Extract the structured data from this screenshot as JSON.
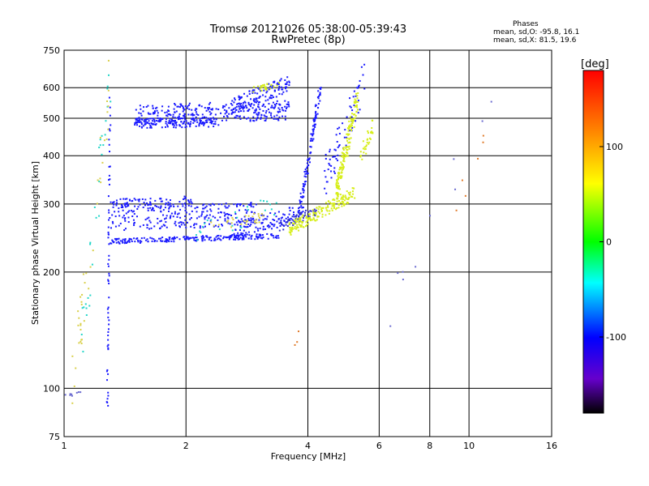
{
  "chart_data": {
    "type": "scatter",
    "title": "Tromsø 20121026 05:38:00-05:39:43",
    "subtitle": "RwPretec (8p)",
    "xlabel": "Frequency [MHz]",
    "ylabel": "Stationary phase Virtual Height [km]",
    "x_scale": "log",
    "y_scale": "log",
    "xlim": [
      1,
      16
    ],
    "ylim": [
      75,
      750
    ],
    "x_ticks": [
      1,
      2,
      4,
      6,
      8,
      10,
      16
    ],
    "y_ticks": [
      75,
      100,
      200,
      300,
      400,
      500,
      600,
      750
    ],
    "grid": true,
    "phase_stats": {
      "heading": "Phases",
      "line_o": "mean, sd,O: -95.8, 16.1",
      "line_x": "mean, sd,X:  81.5, 19.6"
    },
    "colorbar": {
      "unit": "[deg]",
      "range": [
        -180,
        180
      ],
      "ticks": [
        100,
        0,
        -100
      ],
      "colors": [
        "#ff0000",
        "#ff8000",
        "#ffff00",
        "#00ff00",
        "#00ffff",
        "#0000ff",
        "#6600cc",
        "#000000"
      ]
    },
    "series": [
      {
        "color": "#1a1aff",
        "segments": [
          {
            "x0": 1.5,
            "x1": 3.6,
            "y0": 510,
            "y1": 525,
            "n": 320,
            "spread": 0.06
          },
          {
            "x0": 1.5,
            "x1": 2.4,
            "y0": 485,
            "y1": 490,
            "n": 140,
            "spread": 0.03
          },
          {
            "x0": 2.6,
            "x1": 3.6,
            "y0": 540,
            "y1": 615,
            "n": 120,
            "spread": 0.05
          },
          {
            "x0": 1.3,
            "x1": 3.4,
            "y0": 240,
            "y1": 248,
            "n": 220,
            "spread": 0.015
          },
          {
            "x0": 1.3,
            "x1": 3.0,
            "y0": 270,
            "y1": 285,
            "n": 240,
            "spread": 0.07
          },
          {
            "x0": 1.3,
            "x1": 2.1,
            "y0": 300,
            "y1": 305,
            "n": 90,
            "spread": 0.03
          },
          {
            "x0": 2.6,
            "x1": 3.9,
            "y0": 255,
            "y1": 285,
            "n": 120,
            "spread": 0.05
          },
          {
            "x0": 3.8,
            "x1": 4.3,
            "y0": 280,
            "y1": 600,
            "n": 110,
            "spread": 0.05
          },
          {
            "x0": 4.4,
            "x1": 5.5,
            "y0": 350,
            "y1": 620,
            "n": 70,
            "spread": 0.12
          },
          {
            "x0": 1.28,
            "x1": 1.3,
            "y0": 90,
            "y1": 600,
            "n": 60,
            "spread": 0.02
          }
        ]
      },
      {
        "color": "#3030c8",
        "segments": [
          {
            "x0": 3.4,
            "x1": 4.2,
            "y0": 262,
            "y1": 290,
            "n": 50,
            "spread": 0.03
          }
        ]
      },
      {
        "color": "#d7ee1a",
        "segments": [
          {
            "x0": 3.6,
            "x1": 5.2,
            "y0": 258,
            "y1": 320,
            "n": 180,
            "spread": 0.04
          },
          {
            "x0": 4.7,
            "x1": 5.3,
            "y0": 320,
            "y1": 560,
            "n": 160,
            "spread": 0.07
          },
          {
            "x0": 5.4,
            "x1": 5.8,
            "y0": 400,
            "y1": 480,
            "n": 30,
            "spread": 0.06
          },
          {
            "x0": 2.9,
            "x1": 3.4,
            "y0": 590,
            "y1": 612,
            "n": 25,
            "spread": 0.02
          }
        ]
      },
      {
        "color": "#22d6c8",
        "segments": [
          {
            "x0": 1.1,
            "x1": 1.3,
            "y0": 120,
            "y1": 650,
            "n": 30,
            "spread": 0.2
          },
          {
            "x0": 2.1,
            "x1": 3.4,
            "y0": 250,
            "y1": 300,
            "n": 25,
            "spread": 0.06
          }
        ]
      },
      {
        "color": "#d9d04a",
        "segments": [
          {
            "x0": 1.05,
            "x1": 1.3,
            "y0": 100,
            "y1": 650,
            "n": 40,
            "spread": 0.2
          },
          {
            "x0": 2.3,
            "x1": 3.1,
            "y0": 262,
            "y1": 278,
            "n": 30,
            "spread": 0.03
          }
        ]
      },
      {
        "color": "#e07a2a",
        "segments": [
          {
            "x0": 3.7,
            "x1": 3.8,
            "y0": 128,
            "y1": 142,
            "n": 3,
            "spread": 0.02
          },
          {
            "x0": 8.5,
            "x1": 12.0,
            "y0": 230,
            "y1": 600,
            "n": 6,
            "spread": 0.1
          }
        ]
      },
      {
        "color": "#6a6ad0",
        "segments": [
          {
            "x0": 1.0,
            "x1": 1.1,
            "y0": 95,
            "y1": 98,
            "n": 8,
            "spread": 0.01
          },
          {
            "x0": 6.0,
            "x1": 11.5,
            "y0": 140,
            "y1": 560,
            "n": 10,
            "spread": 0.15
          }
        ]
      }
    ]
  }
}
